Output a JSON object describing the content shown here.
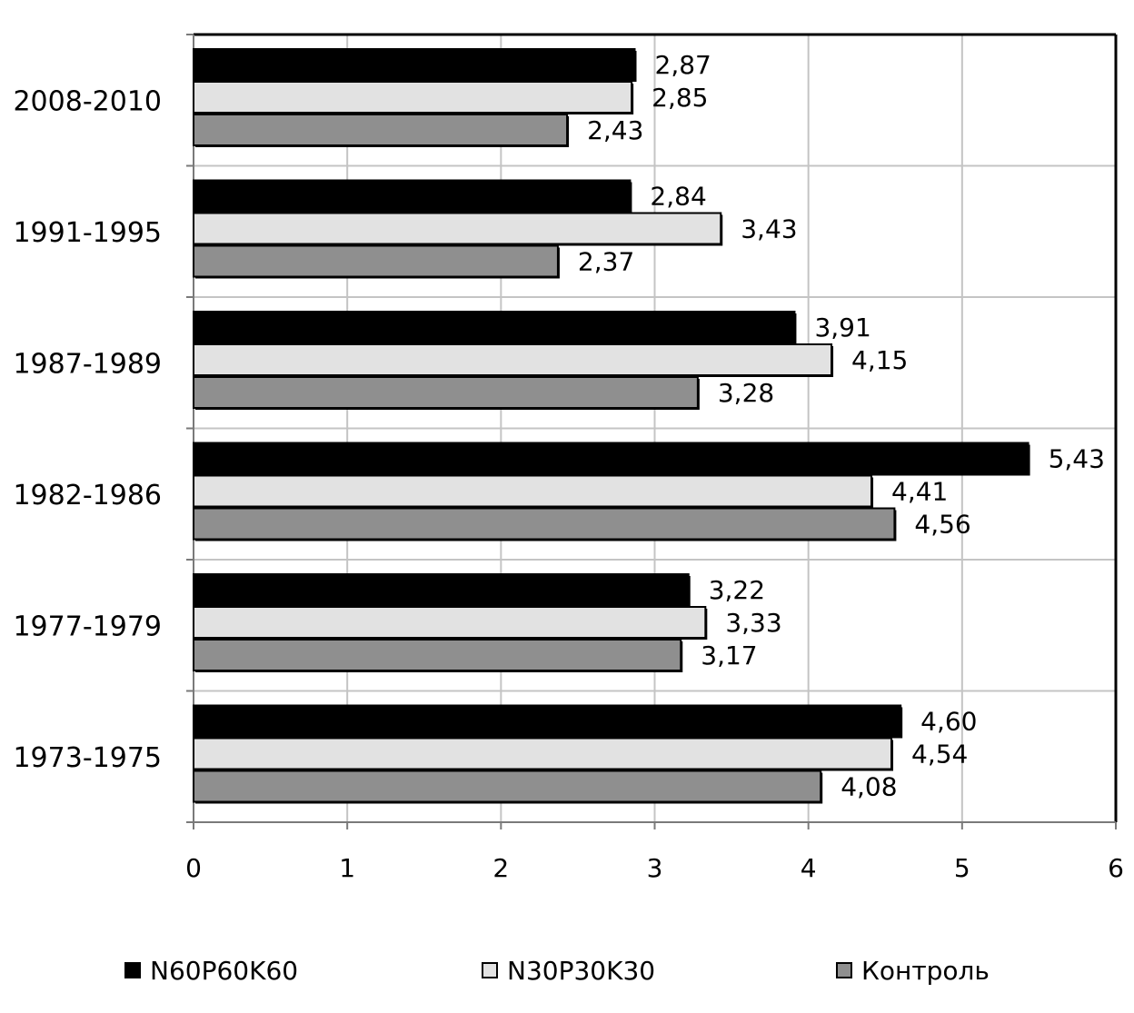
{
  "chart_data": {
    "type": "bar",
    "orientation": "horizontal",
    "categories": [
      "2008-2010",
      "1991-1995",
      "1987-1989",
      "1982-1986",
      "1977-1979",
      "1973-1975"
    ],
    "series": [
      {
        "name": "N60P60K60",
        "color": "#000000",
        "values": [
          2.87,
          2.84,
          3.91,
          5.43,
          3.22,
          4.6
        ],
        "labels": [
          "2,87",
          "2,84",
          "3,91",
          "5,43",
          "3,22",
          "4,60"
        ]
      },
      {
        "name": "N30P30K30",
        "color": "#e2e2e2",
        "values": [
          2.85,
          3.43,
          4.15,
          4.41,
          3.33,
          4.54
        ],
        "labels": [
          "2,85",
          "3,43",
          "4,15",
          "4,41",
          "3,33",
          "4,54"
        ]
      },
      {
        "name": "Контроль",
        "color": "#8f8f8f",
        "values": [
          2.43,
          2.37,
          3.28,
          4.56,
          3.17,
          4.08
        ],
        "labels": [
          "2,43",
          "2,37",
          "3,28",
          "4,56",
          "3,17",
          "4,08"
        ]
      }
    ],
    "x_ticks": [
      "0",
      "1",
      "2",
      "3",
      "4",
      "5",
      "6"
    ],
    "xlim": [
      0,
      6
    ],
    "grid": true,
    "legend_position": "bottom"
  }
}
